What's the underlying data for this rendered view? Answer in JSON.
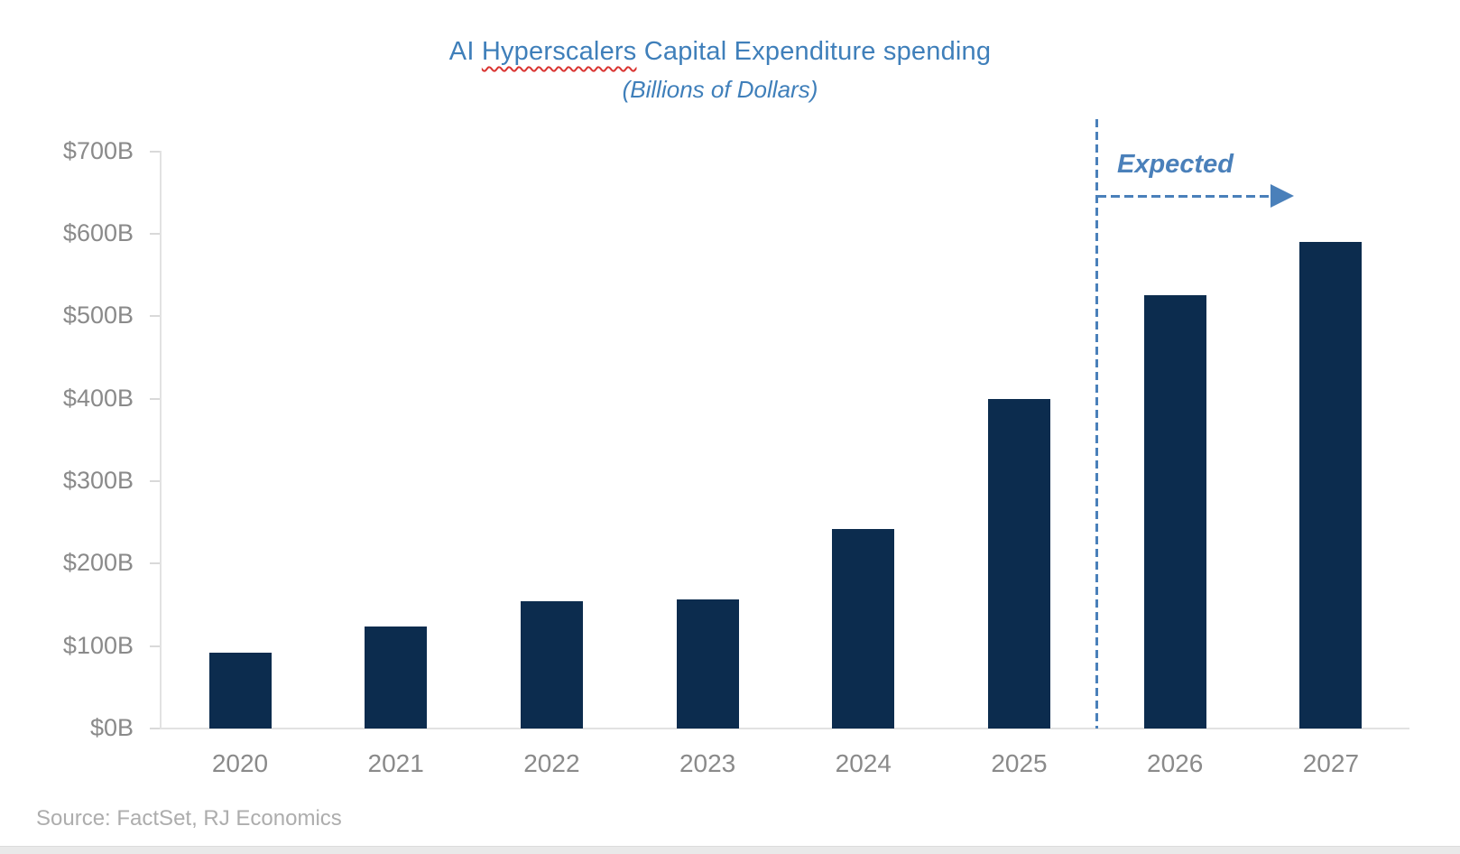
{
  "title": {
    "prefix": "AI ",
    "misspelled_word": "Hyperscalers",
    "suffix": " Capital Expenditure spending",
    "subtitle": "(Billions of Dollars)"
  },
  "annotation": {
    "label": "Expected"
  },
  "source": {
    "text": "Source: FactSet, RJ Economics"
  },
  "colors": {
    "bar": "#0c2c4e",
    "title_blue": "#3f7fba",
    "annotation_blue": "#4a80ba",
    "axis_label_gray": "#8a8a8a",
    "source_gray": "#adadad",
    "axis_line_gray": "#e2e2e2",
    "tick_gray": "#d9d9d9",
    "squiggle_red": "#d93431",
    "bottom_strip": "#e9e9e9"
  },
  "chart_data": {
    "type": "bar",
    "title": "AI Hyperscalers Capital Expenditure spending",
    "subtitle": "(Billions of Dollars)",
    "categories": [
      "2020",
      "2021",
      "2022",
      "2023",
      "2024",
      "2025",
      "2026",
      "2027"
    ],
    "values": [
      92,
      124,
      154,
      156,
      242,
      400,
      525,
      590
    ],
    "unit": "billions of dollars",
    "xlabel": "",
    "ylabel": "",
    "ylim": [
      0,
      700
    ],
    "ytick_step": 100,
    "ytick_labels": [
      "$0B",
      "$100B",
      "$200B",
      "$300B",
      "$400B",
      "$500B",
      "$600B",
      "$700B"
    ],
    "grid": false,
    "legend": "none",
    "annotation": "dashed vertical separator between 2025 and 2026 with dashed arrow labeled Expected marking forecast years 2026-2027"
  }
}
